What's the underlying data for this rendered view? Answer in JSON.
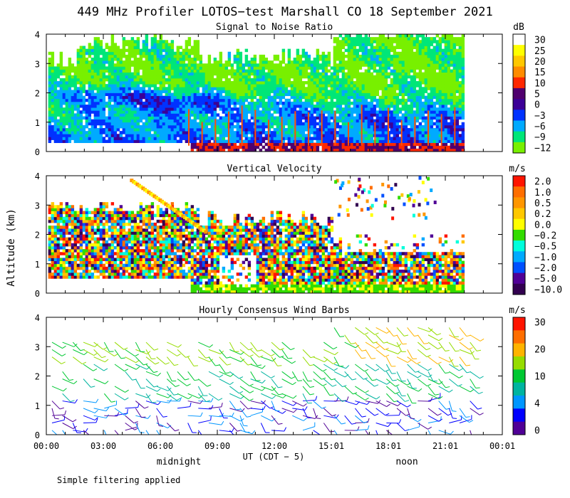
{
  "title": "449 MHz Profiler LOTOS−test Marshall CO 18 September 2021",
  "y_axis_label": "Altitude (km)",
  "x_axis_label": "UT  (CDT − 5)",
  "x_annotations": [
    "midnight",
    "noon"
  ],
  "footnote": "Simple filtering applied",
  "chart_data": [
    {
      "type": "heatmap",
      "title": "Signal to Noise Ratio",
      "x_ticks": [
        "00:00",
        "03:00",
        "06:00",
        "09:00",
        "12:00",
        "15:01",
        "18:01",
        "21:01",
        "00:01"
      ],
      "xlim_hours": [
        0,
        24
      ],
      "y_ticks": [
        "0",
        "1",
        "2",
        "3",
        "4"
      ],
      "ylim_km": [
        0,
        4
      ],
      "colorbar": {
        "unit": "dB",
        "labels": [
          "30",
          "25",
          "20",
          "15",
          "10",
          "5",
          "0",
          "−3",
          "−6",
          "−9",
          "−12"
        ],
        "colors": [
          "#ffffff",
          "#ffff00",
          "#ffc800",
          "#ff8c00",
          "#ff2800",
          "#50006e",
          "#3c0096",
          "#0032ff",
          "#00aaff",
          "#00e678",
          "#78f000"
        ]
      }
    },
    {
      "type": "heatmap",
      "title": "Vertical Velocity",
      "x_ticks": [
        "00:00",
        "03:00",
        "06:00",
        "09:00",
        "12:00",
        "15:01",
        "18:01",
        "21:01",
        "00:01"
      ],
      "xlim_hours": [
        0,
        24
      ],
      "y_ticks": [
        "0",
        "1",
        "2",
        "3",
        "4"
      ],
      "ylim_km": [
        0,
        4
      ],
      "colorbar": {
        "unit": "m/s",
        "labels": [
          "2.0",
          "1.0",
          "0.5",
          "0.2",
          "0.0",
          "−0.2",
          "−0.5",
          "−1.0",
          "−2.0",
          "−5.0",
          "−10.0"
        ],
        "colors": [
          "#ff1400",
          "#ff6e00",
          "#ff9600",
          "#ffc800",
          "#ffff00",
          "#32dc00",
          "#00ffdc",
          "#00aaff",
          "#0050ff",
          "#500096",
          "#320050"
        ]
      }
    },
    {
      "type": "scatter",
      "title": "Hourly Consensus Wind Barbs",
      "x_ticks": [
        "00:00",
        "03:00",
        "06:00",
        "09:00",
        "12:00",
        "15:01",
        "18:01",
        "21:01",
        "00:01"
      ],
      "xlim_hours": [
        0,
        24
      ],
      "y_ticks": [
        "0",
        "1",
        "2",
        "3",
        "4"
      ],
      "ylim_km": [
        0,
        4
      ],
      "colorbar": {
        "unit": "m/s",
        "labels": [
          "30",
          "20",
          "10",
          "4",
          "0"
        ],
        "colors": [
          "#ff1400",
          "#ff6e00",
          "#ffb400",
          "#96dc00",
          "#00c832",
          "#00b4a0",
          "#0096ff",
          "#0000ff",
          "#500096"
        ]
      }
    }
  ]
}
